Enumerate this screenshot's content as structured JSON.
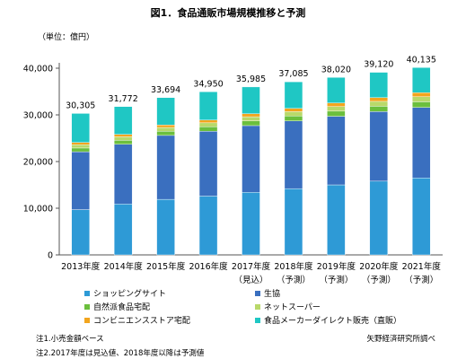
{
  "chart_data": {
    "type": "bar",
    "stacked": true,
    "title": "図1．食品通販市場規模推移と予測",
    "unit_label": "（単位：億円）",
    "categories": [
      "2013年度",
      "2014年度",
      "2015年度",
      "2016年度",
      "2017年度",
      "2018年度",
      "2019年度",
      "2020年度",
      "2021年度"
    ],
    "category_sublabels": [
      "",
      "",
      "",
      "",
      "（見込）",
      "（予測）",
      "（予測）",
      "（予測）",
      "（予測）"
    ],
    "totals": [
      30305,
      31772,
      33694,
      34950,
      35985,
      37085,
      38020,
      39120,
      40135
    ],
    "total_labels": [
      "30,305",
      "31,772",
      "33,694",
      "34,950",
      "35,985",
      "37,085",
      "38,020",
      "39,120",
      "40,135"
    ],
    "ylim": [
      0,
      40000
    ],
    "yticks": [
      0,
      10000,
      20000,
      30000,
      40000
    ],
    "ytick_labels": [
      "0",
      "10,000",
      "20,000",
      "30,000",
      "40,000"
    ],
    "gridlines": false,
    "series": [
      {
        "name": "ショッピングサイト",
        "color": "#2e9ad6",
        "values": [
          9700,
          10900,
          11900,
          12600,
          13400,
          14200,
          15000,
          15800,
          16500
        ]
      },
      {
        "name": "生協",
        "color": "#3a6fbf",
        "values": [
          12400,
          12800,
          13700,
          13900,
          14300,
          14500,
          14700,
          14900,
          15100
        ]
      },
      {
        "name": "自然派食品宅配",
        "color": "#6bbf3d",
        "values": [
          800,
          850,
          900,
          950,
          1000,
          1050,
          1100,
          1150,
          1200
        ]
      },
      {
        "name": "ネットスーパー",
        "color": "#b9d96a",
        "values": [
          700,
          750,
          800,
          850,
          900,
          950,
          1000,
          1050,
          1100
        ]
      },
      {
        "name": "コンビニエンスストア宅配",
        "color": "#f2a51e",
        "values": [
          500,
          520,
          550,
          600,
          650,
          700,
          750,
          800,
          850
        ]
      },
      {
        "name": "食品メーカーダイレクト販売（直販）",
        "color": "#1fc7c4",
        "values": [
          6205,
          5952,
          5844,
          6050,
          5735,
          5685,
          5470,
          5420,
          5385
        ]
      }
    ],
    "legend_position": "bottom"
  },
  "notes": {
    "note1": "注1.小売金額ベース",
    "note2": "注2.2017年度は見込値、2018年度以降は予測値",
    "source": "矢野経済研究所調べ"
  }
}
